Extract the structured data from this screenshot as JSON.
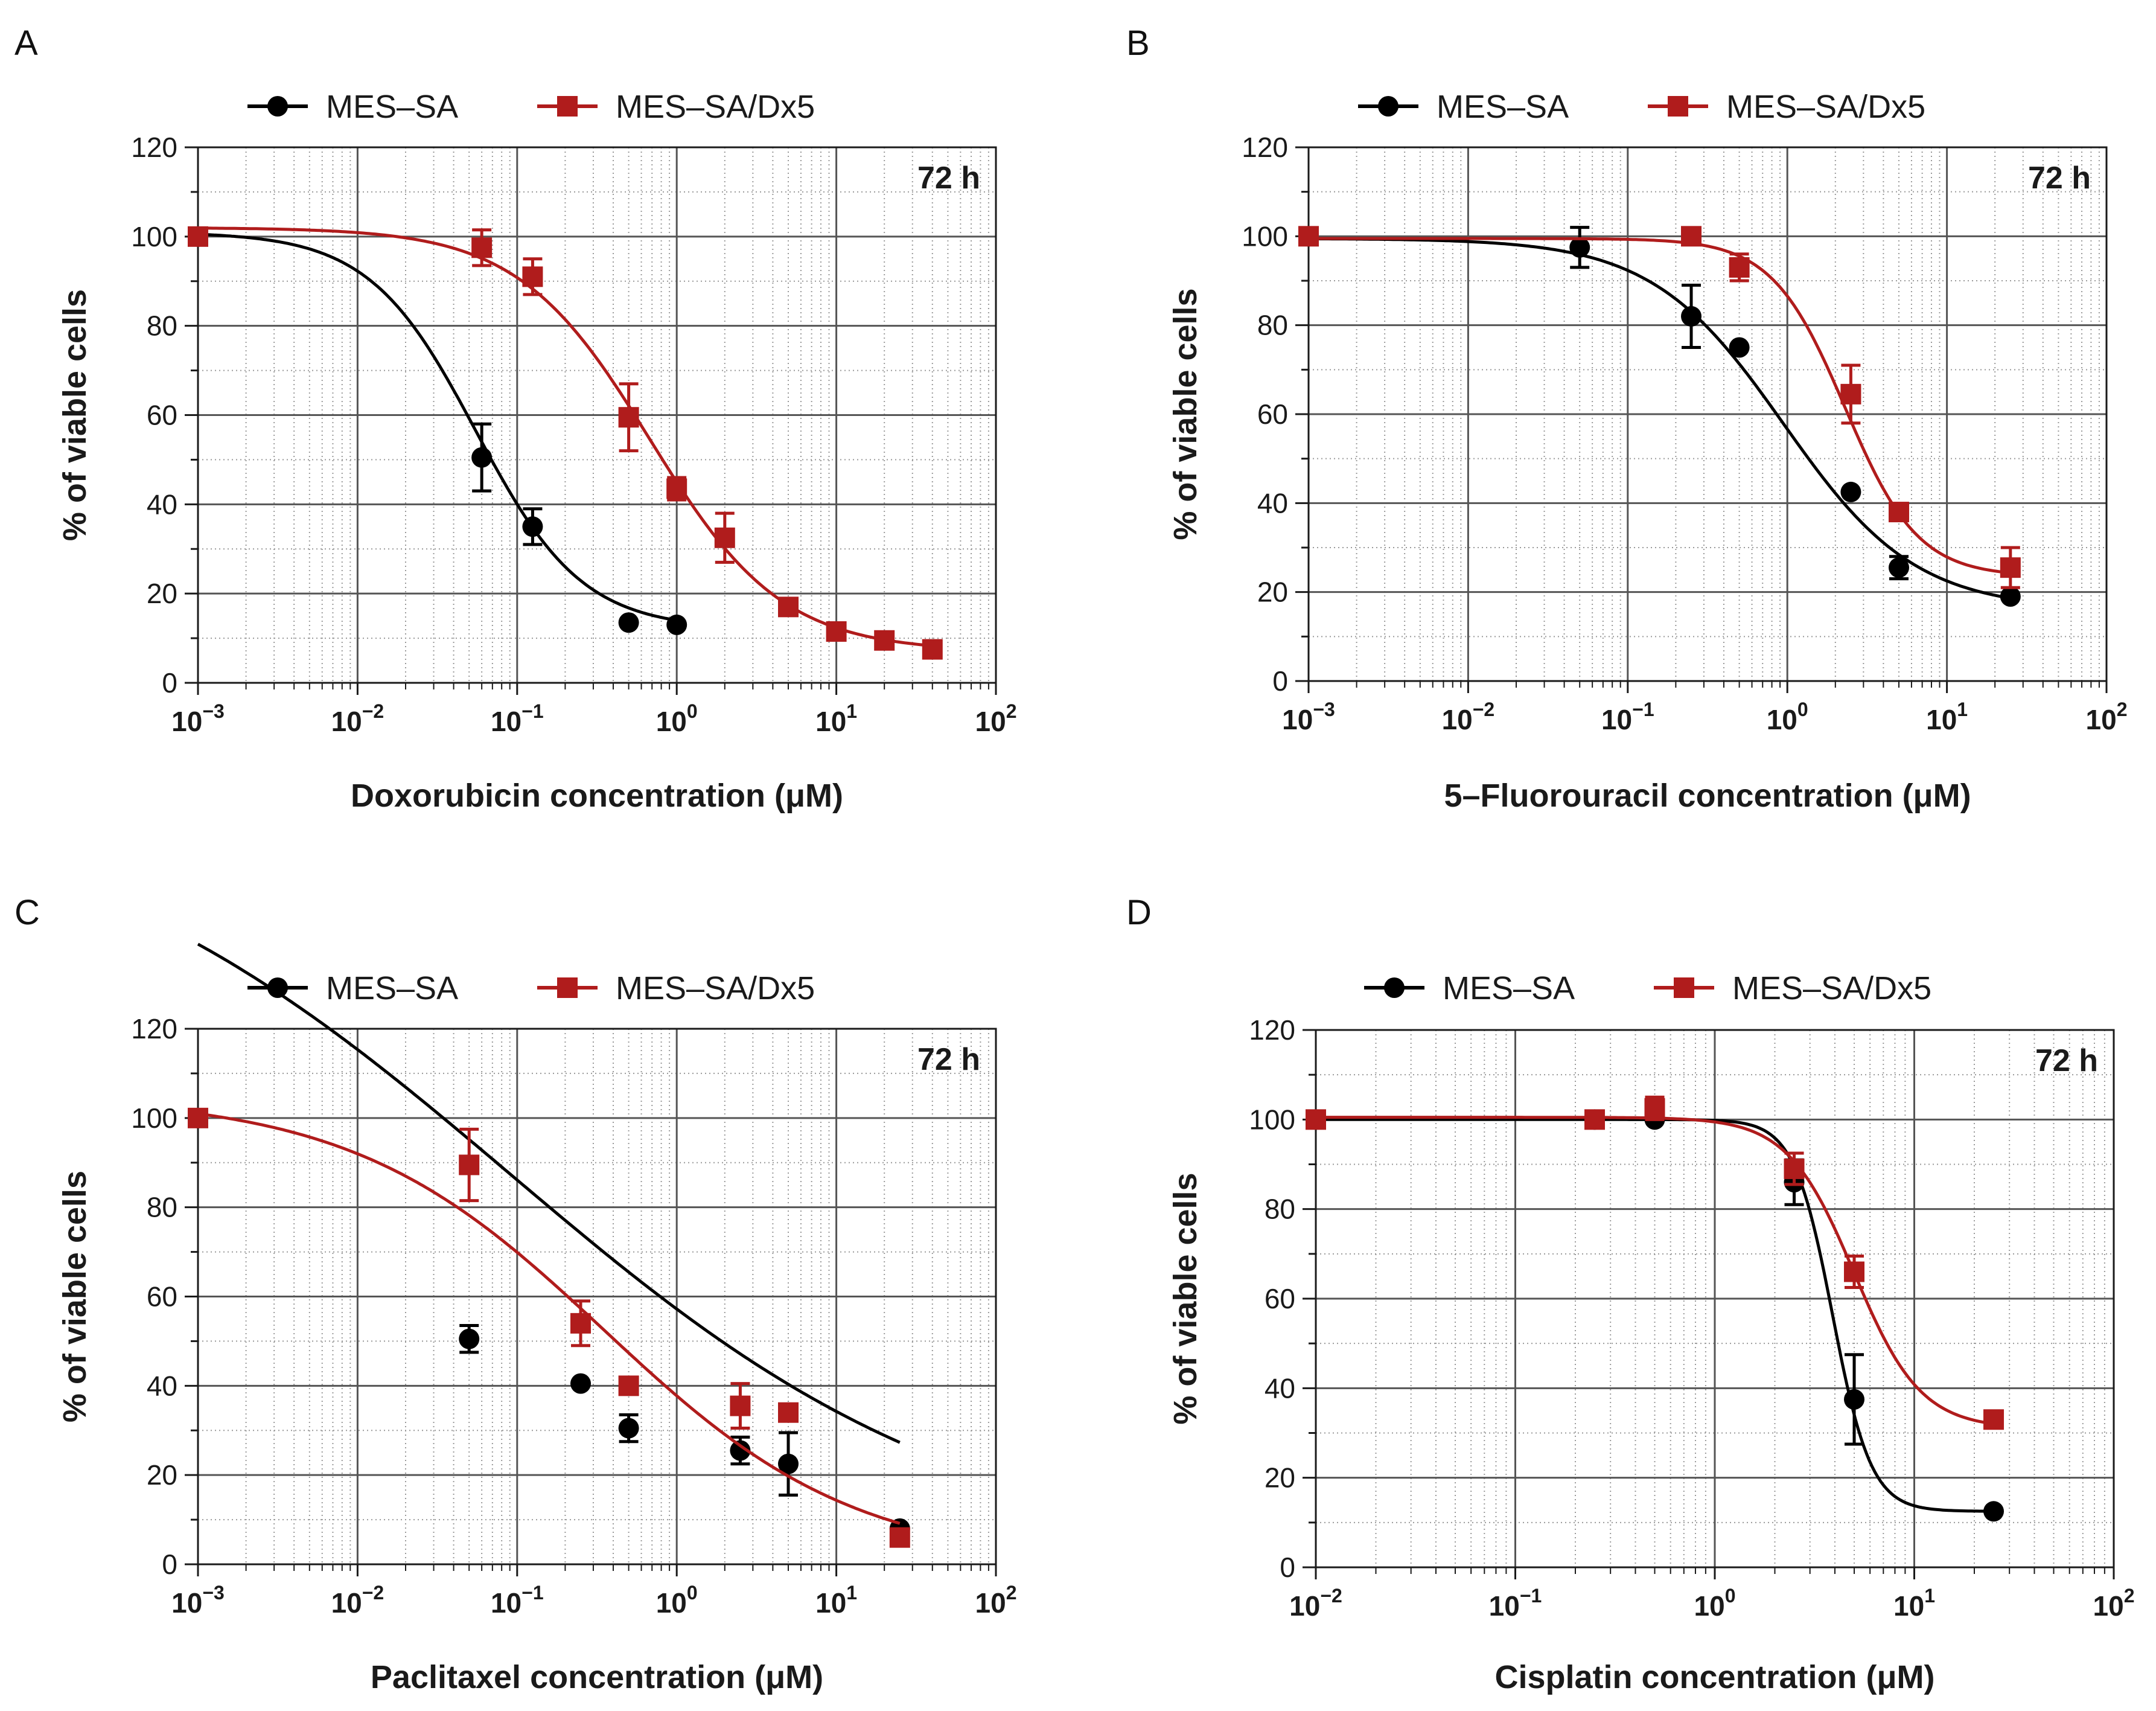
{
  "figure": {
    "series_names": [
      "MES–SA",
      "MES–SA/Dx5"
    ],
    "series_colors": [
      "#000000",
      "#b01c1c"
    ],
    "time_label": "72 h"
  },
  "chart_data": [
    {
      "panel": "A",
      "type": "scatter",
      "xscale": "log",
      "xlabel": "Doxorubicin concentration (μM)",
      "ylabel": "% of viable cells",
      "xlim": [
        0.001,
        100
      ],
      "ylim": [
        0,
        120
      ],
      "xticks": [
        {
          "base": "10",
          "exp": "−3"
        },
        {
          "base": "10",
          "exp": "−2"
        },
        {
          "base": "10",
          "exp": "−1"
        },
        {
          "base": "10",
          "exp": "0"
        },
        {
          "base": "10",
          "exp": "1"
        },
        {
          "base": "10",
          "exp": "2"
        }
      ],
      "yticks": [
        "0",
        "20",
        "40",
        "60",
        "80",
        "100",
        "120"
      ],
      "annotation": "72 h",
      "legend": [
        "MES–SA",
        "MES–SA/Dx5"
      ],
      "series": [
        {
          "name": "MES–SA",
          "color": "#000000",
          "marker": "circle",
          "x": [
            0.001,
            0.06,
            0.125,
            0.5,
            1.0
          ],
          "y": [
            100,
            50.5,
            35,
            13.5,
            13
          ],
          "err": [
            0,
            7.5,
            4,
            0,
            0
          ],
          "fit": {
            "bottom": 12,
            "top": 101,
            "ec50": 0.055,
            "hill": 1.3,
            "xmin": 0.001,
            "xmax": 1.0
          }
        },
        {
          "name": "MES–SA/Dx5",
          "color": "#b01c1c",
          "marker": "square",
          "x": [
            0.001,
            0.06,
            0.125,
            0.5,
            1.0,
            2.0,
            5.0,
            10.0,
            20.0,
            40.0
          ],
          "y": [
            100,
            97.5,
            91,
            59.5,
            43.5,
            32.5,
            17,
            11.5,
            9.5,
            7.5
          ],
          "err": [
            0,
            4,
            4,
            7.5,
            2.5,
            5.5,
            1.5,
            0,
            0,
            0
          ],
          "fit": {
            "bottom": 7,
            "top": 102,
            "ec50": 0.68,
            "hill": 1.05,
            "xmin": 0.001,
            "xmax": 40.0
          }
        }
      ]
    },
    {
      "panel": "B",
      "type": "scatter",
      "xscale": "log",
      "xlabel": "5–Fluorouracil concentration (μM)",
      "ylabel": "% of viable cells",
      "xlim": [
        0.001,
        100
      ],
      "ylim": [
        0,
        120
      ],
      "xticks": [
        {
          "base": "10",
          "exp": "−3"
        },
        {
          "base": "10",
          "exp": "−2"
        },
        {
          "base": "10",
          "exp": "−1"
        },
        {
          "base": "10",
          "exp": "0"
        },
        {
          "base": "10",
          "exp": "1"
        },
        {
          "base": "10",
          "exp": "2"
        }
      ],
      "yticks": [
        "0",
        "20",
        "40",
        "60",
        "80",
        "100",
        "120"
      ],
      "annotation": "72 h",
      "legend": [
        "MES–SA",
        "MES–SA/Dx5"
      ],
      "series": [
        {
          "name": "MES–SA",
          "color": "#000000",
          "marker": "circle",
          "x": [
            0.001,
            0.05,
            0.25,
            0.5,
            2.5,
            5.0,
            25.0
          ],
          "y": [
            100,
            97.5,
            82,
            75,
            42.5,
            25.5,
            19
          ],
          "err": [
            0,
            4.5,
            7,
            0,
            0,
            2.5,
            0
          ],
          "fit": {
            "bottom": 16,
            "top": 99.5,
            "ec50": 0.95,
            "hill": 1.05,
            "xmin": 0.001,
            "xmax": 25.0
          }
        },
        {
          "name": "MES–SA/Dx5",
          "color": "#b01c1c",
          "marker": "square",
          "x": [
            0.001,
            0.25,
            0.5,
            2.5,
            5.0,
            25.0
          ],
          "y": [
            100,
            100,
            93,
            64.5,
            38,
            25.5
          ],
          "err": [
            0,
            0,
            3,
            6.5,
            0,
            4.5
          ],
          "fit": {
            "bottom": 23.5,
            "top": 99.5,
            "ec50": 2.3,
            "hill": 1.9,
            "xmin": 0.001,
            "xmax": 25.0
          }
        }
      ]
    },
    {
      "panel": "C",
      "type": "scatter",
      "xscale": "log",
      "xlabel": "Paclitaxel concentration (μM)",
      "ylabel": "% of viable cells",
      "xlim": [
        0.001,
        100
      ],
      "ylim": [
        0,
        120
      ],
      "xticks": [
        {
          "base": "10",
          "exp": "−3"
        },
        {
          "base": "10",
          "exp": "−2"
        },
        {
          "base": "10",
          "exp": "−1"
        },
        {
          "base": "10",
          "exp": "0"
        },
        {
          "base": "10",
          "exp": "1"
        },
        {
          "base": "10",
          "exp": "2"
        }
      ],
      "yticks": [
        "0",
        "20",
        "40",
        "60",
        "80",
        "100",
        "120"
      ],
      "annotation": "72 h",
      "legend": [
        "MES–SA",
        "MES–SA/Dx5"
      ],
      "series": [
        {
          "name": "MES–SA",
          "color": "#000000",
          "marker": "circle",
          "x": [
            0.001,
            0.05,
            0.25,
            0.5,
            2.5,
            5.0,
            25.0
          ],
          "y": [
            100,
            50.5,
            40.5,
            30.5,
            25.5,
            22.5,
            8
          ],
          "err": [
            0,
            3,
            0,
            3,
            3,
            7,
            0
          ],
          "fit": {
            "bottom": 0,
            "top": 175,
            "ec50": 0.09,
            "hill": 0.3,
            "xmin": 0.001,
            "xmax": 25.0
          }
        },
        {
          "name": "MES–SA/Dx5",
          "color": "#b01c1c",
          "marker": "square",
          "x": [
            0.001,
            0.05,
            0.25,
            0.5,
            2.5,
            5.0,
            25.0
          ],
          "y": [
            100,
            89.5,
            54,
            40,
            35.5,
            34,
            6
          ],
          "err": [
            0,
            8,
            5,
            0,
            5,
            0,
            0
          ],
          "fit": {
            "bottom": 0,
            "top": 105,
            "ec50": 0.35,
            "hill": 0.55,
            "xmin": 0.001,
            "xmax": 25.0
          }
        }
      ]
    },
    {
      "panel": "D",
      "type": "scatter",
      "xscale": "log",
      "xlabel": "Cisplatin concentration (μM)",
      "ylabel": "% of viable cells",
      "xlim": [
        0.01,
        100
      ],
      "ylim": [
        0,
        120
      ],
      "xticks": [
        {
          "base": "10",
          "exp": "−2"
        },
        {
          "base": "10",
          "exp": "−1"
        },
        {
          "base": "10",
          "exp": "0"
        },
        {
          "base": "10",
          "exp": "1"
        },
        {
          "base": "10",
          "exp": "2"
        }
      ],
      "yticks": [
        "0",
        "20",
        "40",
        "60",
        "80",
        "100",
        "120"
      ],
      "annotation": "72 h",
      "legend": [
        "MES–SA",
        "MES–SA/Dx5"
      ],
      "series": [
        {
          "name": "MES–SA",
          "color": "#000000",
          "marker": "circle",
          "x": [
            0.01,
            0.25,
            0.5,
            2.5,
            5.0,
            25.0
          ],
          "y": [
            100,
            100,
            100,
            86,
            37.5,
            12.5
          ],
          "err": [
            0,
            0,
            0,
            5,
            10,
            0
          ],
          "fit": {
            "bottom": 12.5,
            "top": 100,
            "ec50": 3.9,
            "hill": 4.5,
            "xmin": 0.01,
            "xmax": 25.0
          }
        },
        {
          "name": "MES–SA/Dx5",
          "color": "#b01c1c",
          "marker": "square",
          "x": [
            0.01,
            0.25,
            0.5,
            2.5,
            5.0,
            25.0
          ],
          "y": [
            100,
            100,
            102.5,
            89,
            66,
            33
          ],
          "err": [
            0,
            0,
            2.5,
            3.5,
            3.5,
            0
          ],
          "fit": {
            "bottom": 31,
            "top": 100.5,
            "ec50": 5.0,
            "hill": 2.6,
            "xmin": 0.01,
            "xmax": 25.0
          }
        }
      ]
    }
  ]
}
